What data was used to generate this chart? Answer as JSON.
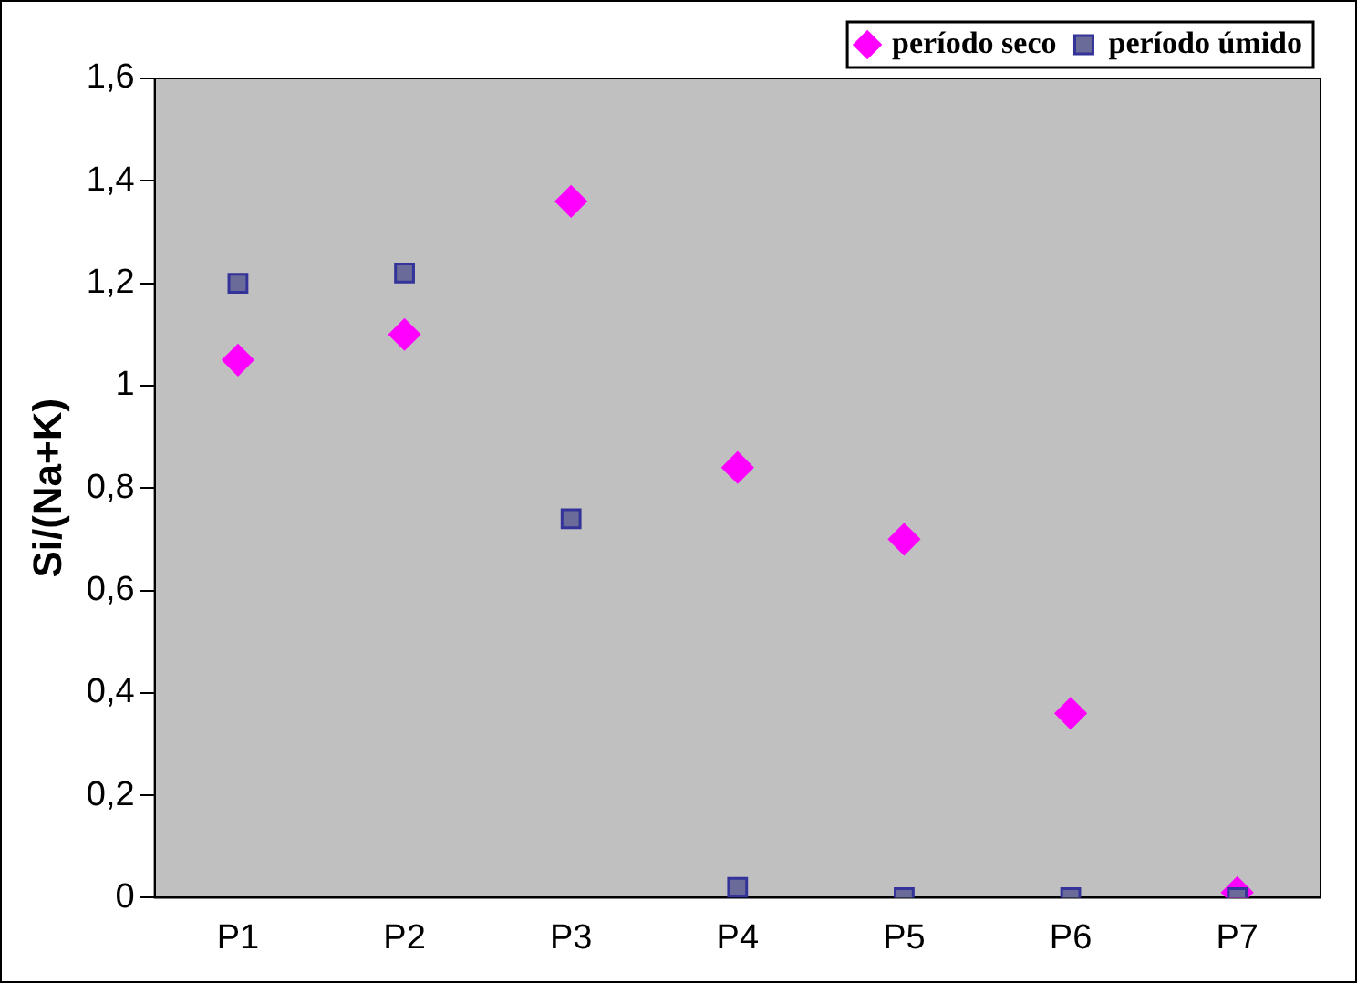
{
  "chart_data": {
    "type": "scatter",
    "ylabel": "Si/(Na+K)",
    "categories": [
      "P1",
      "P2",
      "P3",
      "P4",
      "P5",
      "P6",
      "P7"
    ],
    "ylim": [
      0,
      1.6
    ],
    "yticks": [
      {
        "value": 0,
        "label": "0"
      },
      {
        "value": 0.2,
        "label": "0,2"
      },
      {
        "value": 0.4,
        "label": "0,4"
      },
      {
        "value": 0.6,
        "label": "0,6"
      },
      {
        "value": 0.8,
        "label": "0,8"
      },
      {
        "value": 1,
        "label": "1"
      },
      {
        "value": 1.2,
        "label": "1,2"
      },
      {
        "value": 1.4,
        "label": "1,4"
      },
      {
        "value": 1.6,
        "label": "1,6"
      }
    ],
    "legend": "top right",
    "grid": false,
    "series": [
      {
        "name": "período seco",
        "color": "#ff00ff",
        "marker": "diamond",
        "values": [
          1.05,
          1.1,
          1.36,
          0.84,
          0.7,
          0.36,
          0.01
        ]
      },
      {
        "name": "período úmido",
        "color": "#333399",
        "marker": "square",
        "values": [
          1.2,
          1.22,
          0.74,
          0.02,
          0,
          0,
          0
        ]
      }
    ]
  }
}
